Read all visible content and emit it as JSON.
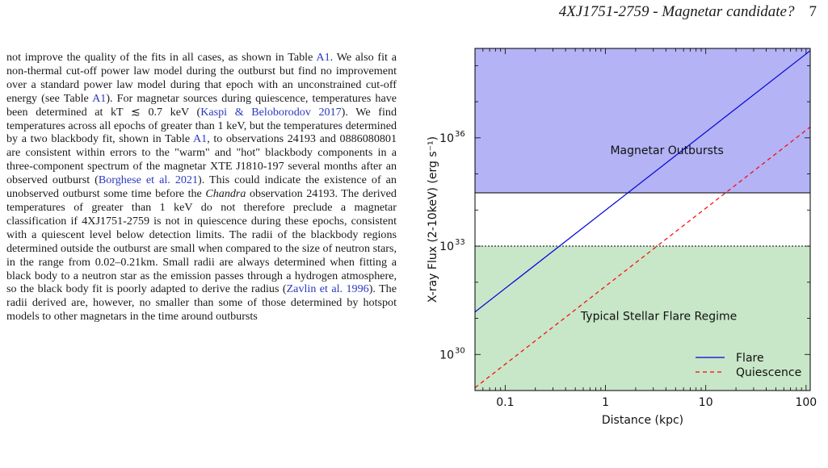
{
  "header": {
    "title": "4XJ1751-2759 - Magnetar candidate?",
    "page_number": "7"
  },
  "paragraph": [
    {
      "t": "not improve the quality of the fits in all cases, as shown in Table "
    },
    {
      "t": "A1",
      "cite": true
    },
    {
      "t": ". We also fit a non-thermal cut-off power law model during the outburst but find no improvement over a standard power law model during that epoch with an unconstrained cut-off energy (see Table "
    },
    {
      "t": "A1",
      "cite": true
    },
    {
      "t": "). For magnetar sources during quiescence, temperatures have been determined at kT ≲ 0.7 keV ("
    },
    {
      "t": "Kaspi & Beloborodov 2017",
      "cite": true
    },
    {
      "t": "). We find temperatures across all epochs of greater than 1 keV, but the temperatures determined by a two blackbody fit, shown in Table "
    },
    {
      "t": "A1",
      "cite": true
    },
    {
      "t": ", to observations 24193 and 0886080801 are consistent within errors to the \"warm\" and \"hot\" blackbody components in a three-component spectrum of the magnetar XTE J1810-197 several months after an observed outburst ("
    },
    {
      "t": "Borghese et al. 2021",
      "cite": true
    },
    {
      "t": "). This could indicate the existence of an unobserved outburst some time before the "
    },
    {
      "t": "Chandra",
      "em": true
    },
    {
      "t": " observation 24193. The derived temperatures of greater than 1 keV do not therefore preclude a magnetar classification if 4XJ1751-2759 is not in quiescence during these epochs, consistent with a quiescent level below detection limits. The radii of the blackbody regions determined outside the outburst are small when compared to the size of neutron stars, in the range from 0.02–0.21km. Small radii are always determined when fitting a black body to a neutron star as the emission passes through a hydrogen atmosphere, so the black body fit is poorly adapted to derive the radius ("
    },
    {
      "t": "Zavlin et al. 1996",
      "cite": true
    },
    {
      "t": "). The radii derived are, however, no smaller than some of those determined by hotspot models to other magnetars in the time around outbursts"
    }
  ],
  "chart_data": {
    "type": "line",
    "xlabel": "Distance (kpc)",
    "ylabel": "X-ray Flux (2-10keV) (erg s⁻¹)",
    "xscale": "log",
    "yscale": "log",
    "xlim": [
      0.05,
      110
    ],
    "ylim": [
      1e+29,
      3e+38
    ],
    "x_ticks": [
      {
        "v": 0.1,
        "label": "0.1"
      },
      {
        "v": 1,
        "label": "1"
      },
      {
        "v": 10,
        "label": "10"
      },
      {
        "v": 100,
        "label": "100"
      }
    ],
    "y_ticks": [
      {
        "v": 1e+30,
        "label": "10",
        "exp": "30"
      },
      {
        "v": 1e+33,
        "label": "10",
        "exp": "33"
      },
      {
        "v": 1e+36,
        "label": "10",
        "exp": "36"
      }
    ],
    "regions": [
      {
        "name": "Magnetar Outbursts",
        "y_min": 3e+34,
        "y_max": 3e+38,
        "color": "#b3b3f5"
      },
      {
        "name": "Typical Stellar Flare Regime",
        "y_min": 1e+29,
        "y_max": 1e+33,
        "color": "#c8e6c8"
      }
    ],
    "hlines": [
      {
        "y": 3e+34,
        "style": "solid"
      },
      {
        "y": 1e+33,
        "style": "dotted"
      }
    ],
    "series": [
      {
        "name": "Flare",
        "style": "solid",
        "color": "#0000dd",
        "x": [
          0.05,
          110
        ],
        "y": [
          1.5e+31,
          2.6e+38
        ]
      },
      {
        "name": "Quiescence",
        "style": "dashed",
        "color": "#ff0000",
        "x": [
          0.05,
          110
        ],
        "y": [
          1.2e+29,
          2e+36
        ]
      }
    ],
    "legend": "lower-right"
  }
}
